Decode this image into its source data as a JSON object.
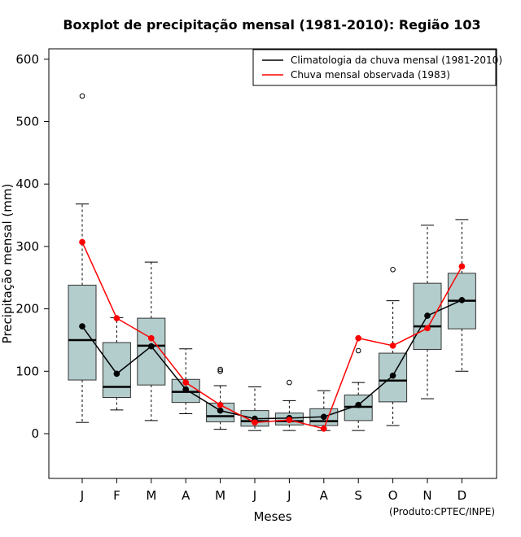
{
  "chart_data": {
    "type": "boxplot",
    "title": "Boxplot de precipitação mensal (1981-2010): Região 103",
    "xlabel": "Meses",
    "ylabel": "Precipitação mensal (mm)",
    "ylim": [
      -70,
      620
    ],
    "yticks": [
      0,
      100,
      200,
      300,
      400,
      500,
      600
    ],
    "categories": [
      "J",
      "F",
      "M",
      "A",
      "M",
      "J",
      "J",
      "A",
      "S",
      "O",
      "N",
      "D"
    ],
    "boxes": [
      {
        "min": 18,
        "q1": 86,
        "median": 150,
        "q3": 238,
        "max": 368,
        "outliers": [
          541
        ]
      },
      {
        "min": 38,
        "q1": 58,
        "median": 75,
        "q3": 146,
        "max": 186,
        "outliers": []
      },
      {
        "min": 21,
        "q1": 78,
        "median": 141,
        "q3": 185,
        "max": 275,
        "outliers": []
      },
      {
        "min": 32,
        "q1": 50,
        "median": 67,
        "q3": 87,
        "max": 136,
        "outliers": []
      },
      {
        "min": 7,
        "q1": 19,
        "median": 28,
        "q3": 49,
        "max": 77,
        "outliers": [
          100,
          103
        ]
      },
      {
        "min": 5,
        "q1": 12,
        "median": 20,
        "q3": 37,
        "max": 75,
        "outliers": []
      },
      {
        "min": 5,
        "q1": 14,
        "median": 20,
        "q3": 33,
        "max": 53,
        "outliers": [
          82
        ]
      },
      {
        "min": 5,
        "q1": 13,
        "median": 20,
        "q3": 40,
        "max": 69,
        "outliers": []
      },
      {
        "min": 5,
        "q1": 21,
        "median": 43,
        "q3": 62,
        "max": 82,
        "outliers": [
          133
        ]
      },
      {
        "min": 13,
        "q1": 51,
        "median": 85,
        "q3": 129,
        "max": 213,
        "outliers": [
          263
        ]
      },
      {
        "min": 56,
        "q1": 135,
        "median": 172,
        "q3": 241,
        "max": 334,
        "outliers": []
      },
      {
        "min": 100,
        "q1": 168,
        "median": 213,
        "q3": 257,
        "max": 343,
        "outliers": []
      }
    ],
    "series": [
      {
        "name": "Climatologia da chuva mensal (1981-2010)",
        "color": "#000000",
        "values": [
          172,
          96,
          140,
          71,
          37,
          24,
          25,
          27,
          46,
          93,
          189,
          214
        ]
      },
      {
        "name": "Chuva mensal observada (1983)",
        "color": "#ff0000",
        "values": [
          307,
          185,
          153,
          82,
          46,
          18,
          22,
          8,
          153,
          141,
          169,
          268
        ]
      }
    ],
    "box_color": "#b3cccc",
    "legend_position": "top-right"
  },
  "credit": "(Produto:CPTEC/INPE)"
}
